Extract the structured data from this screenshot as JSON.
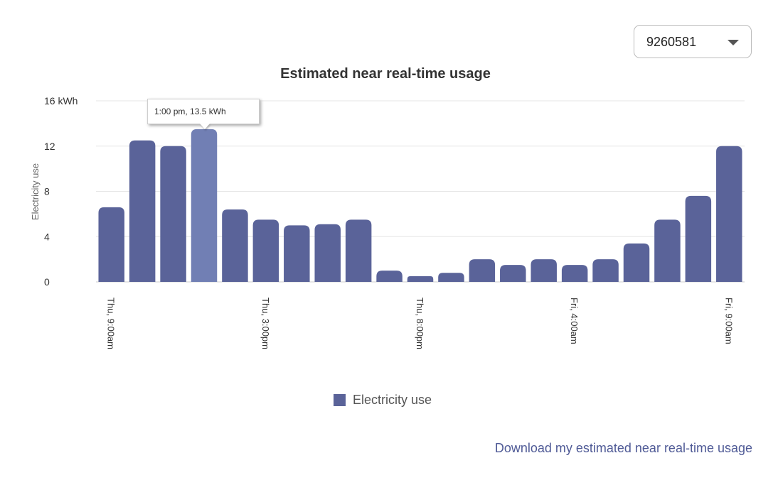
{
  "meter_select": {
    "value": "9260581",
    "icon": "chevron-down-icon"
  },
  "download_link": "Download my estimated near real-time usage",
  "tooltip": {
    "text": "1:00 pm, 13.5 kWh"
  },
  "colors": {
    "bar": "#5a6399",
    "bar_highlight": "#717fb4",
    "link": "#4f5a96"
  },
  "chart_data": {
    "type": "bar",
    "title": "Estimated near real-time usage",
    "ylabel": "Electricity use",
    "y_unit_label": "kWh",
    "ylim": [
      0,
      16
    ],
    "yticks": [
      "0",
      "4",
      "8",
      "12",
      "16 kWh"
    ],
    "xtick_labels": [
      "Thu, 9:00am",
      "Thu, 3:00pm",
      "Thu, 8:00pm",
      "Fri, 4:00am",
      "Fri, 9:00am"
    ],
    "xtick_bar_index": [
      0,
      5,
      10,
      15,
      20
    ],
    "series": [
      {
        "name": "Electricity use",
        "values": [
          6.6,
          12.5,
          12.0,
          13.5,
          6.4,
          5.5,
          5.0,
          5.1,
          5.5,
          1.0,
          0.5,
          0.8,
          2.0,
          1.5,
          2.0,
          1.5,
          2.0,
          3.4,
          5.5,
          7.6,
          12.0
        ]
      }
    ],
    "highlight_index": 3,
    "grid": true,
    "legend": "bottom"
  }
}
